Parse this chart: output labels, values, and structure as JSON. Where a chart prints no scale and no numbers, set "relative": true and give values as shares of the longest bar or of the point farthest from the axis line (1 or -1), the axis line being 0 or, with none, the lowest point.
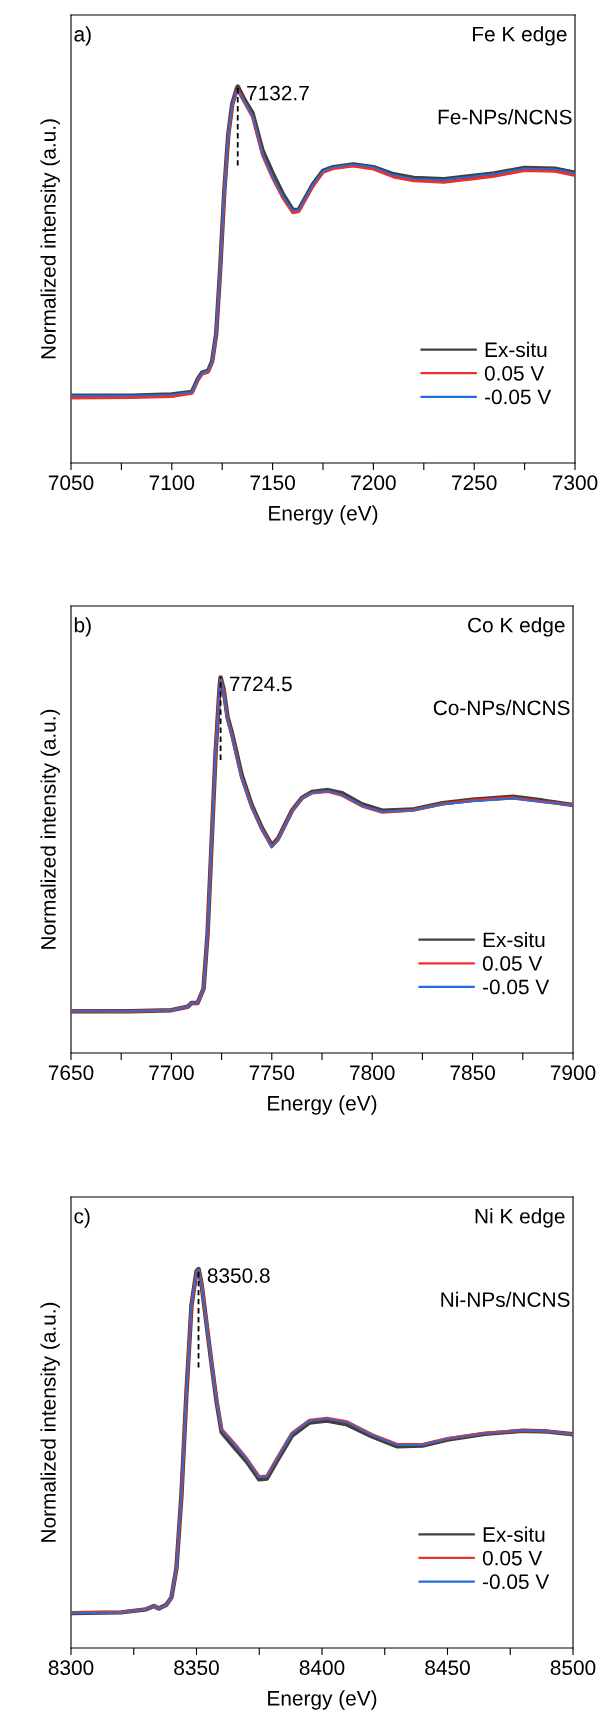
{
  "chart_data": [
    {
      "type": "line",
      "relative": true,
      "xlabel": "Energy (eV)",
      "ylabel": "Normalized intensity (a.u.)",
      "xlim": [
        7050,
        7300
      ],
      "xticks": [
        7050,
        {
          "value": 7075,
          "label": null
        },
        7100,
        {
          "value": 7125,
          "label": null
        },
        7150,
        {
          "value": 7175,
          "label": null
        },
        7200,
        {
          "value": 7225,
          "label": null
        },
        7250,
        {
          "value": 7275,
          "label": null
        },
        7300
      ],
      "tick_labels": "x",
      "legend": "bottom right",
      "line_style": "solid",
      "marker": "none",
      "annotations": [
        "a)",
        "Fe K edge",
        "Fe-NPs/NCNS",
        {
          "text": "7132.7",
          "x": 7132.7,
          "y": 1.0
        }
      ],
      "series": [
        {
          "name": "Ex-situ",
          "color": "#404040",
          "x": [
            7050,
            7080,
            7100,
            7110,
            7113,
            7115,
            7118,
            7120,
            7122,
            7124,
            7126,
            7128,
            7130,
            7132,
            7132.7,
            7136,
            7140,
            7145,
            7150,
            7155,
            7160,
            7163,
            7170,
            7175,
            7180,
            7190,
            7200,
            7210,
            7220,
            7235,
            7250,
            7260,
            7275,
            7290,
            7300
          ],
          "values": [
            0.179,
            0.179,
            0.182,
            0.189,
            0.224,
            0.24,
            0.245,
            0.27,
            0.342,
            0.515,
            0.719,
            0.872,
            0.954,
            0.99,
            1.0,
            0.965,
            0.93,
            0.83,
            0.77,
            0.715,
            0.672,
            0.673,
            0.74,
            0.776,
            0.786,
            0.793,
            0.786,
            0.767,
            0.757,
            0.754,
            0.763,
            0.769,
            0.784,
            0.782,
            0.771
          ]
        },
        {
          "name": "0.05 V",
          "color": "#e8322e",
          "x": [
            7050,
            7080,
            7100,
            7110,
            7113,
            7115,
            7118,
            7120,
            7122,
            7124,
            7126,
            7128,
            7130,
            7132,
            7132.7,
            7136,
            7140,
            7145,
            7150,
            7155,
            7160,
            7163,
            7170,
            7175,
            7180,
            7190,
            7200,
            7210,
            7220,
            7235,
            7250,
            7260,
            7275,
            7290,
            7300
          ],
          "values": [
            0.173,
            0.174,
            0.177,
            0.185,
            0.22,
            0.236,
            0.241,
            0.266,
            0.338,
            0.512,
            0.716,
            0.868,
            0.95,
            0.985,
            0.99,
            0.958,
            0.92,
            0.818,
            0.757,
            0.705,
            0.665,
            0.668,
            0.735,
            0.772,
            0.782,
            0.789,
            0.781,
            0.76,
            0.75,
            0.746,
            0.755,
            0.762,
            0.777,
            0.775,
            0.764
          ]
        },
        {
          "name": "-0.05 V",
          "color": "#1f6fe0",
          "x": [
            7050,
            7080,
            7100,
            7110,
            7113,
            7115,
            7118,
            7120,
            7122,
            7124,
            7126,
            7128,
            7130,
            7132,
            7132.7,
            7136,
            7140,
            7145,
            7150,
            7155,
            7160,
            7163,
            7170,
            7175,
            7180,
            7190,
            7200,
            7210,
            7220,
            7235,
            7250,
            7260,
            7275,
            7290,
            7300
          ],
          "values": [
            0.179,
            0.179,
            0.182,
            0.189,
            0.224,
            0.24,
            0.245,
            0.27,
            0.342,
            0.515,
            0.719,
            0.872,
            0.954,
            0.982,
            0.987,
            0.959,
            0.923,
            0.82,
            0.76,
            0.709,
            0.67,
            0.673,
            0.74,
            0.776,
            0.786,
            0.793,
            0.786,
            0.765,
            0.755,
            0.752,
            0.762,
            0.768,
            0.783,
            0.781,
            0.77
          ]
        },
        {
          "type": "line",
          "color": "#000000",
          "line_style": "dashed",
          "x": [
            7132.7,
            7132.7
          ],
          "values": [
            0.79,
            1.0
          ]
        }
      ]
    },
    {
      "type": "line",
      "relative": true,
      "xlabel": "Energy (eV)",
      "ylabel": "Normalized intensity (a.u.)",
      "xlim": [
        7650,
        7900
      ],
      "xticks": [
        7650,
        {
          "value": 7675,
          "label": null
        },
        7700,
        {
          "value": 7725,
          "label": null
        },
        7750,
        {
          "value": 7775,
          "label": null
        },
        7800,
        {
          "value": 7825,
          "label": null
        },
        7850,
        {
          "value": 7875,
          "label": null
        },
        7900
      ],
      "tick_labels": "x",
      "legend": "bottom right",
      "line_style": "solid",
      "marker": "none",
      "annotations": [
        "b)",
        "Co K edge",
        "Co-NPs/NCNS",
        {
          "text": "7724.5",
          "x": 7724.5,
          "y": 1.0
        }
      ],
      "series": [
        {
          "name": "Ex-situ",
          "color": "#404040",
          "x": [
            7650,
            7680,
            7700,
            7708,
            7710,
            7713,
            7716,
            7718,
            7720,
            7722,
            7724,
            7724.5,
            7726,
            7728,
            7730,
            7735,
            7740,
            7745,
            7750,
            7753,
            7760,
            7765,
            7770,
            7778,
            7785,
            7795,
            7805,
            7820,
            7835,
            7850,
            7870,
            7885,
            7900
          ],
          "values": [
            0.111,
            0.111,
            0.114,
            0.123,
            0.133,
            0.133,
            0.171,
            0.316,
            0.557,
            0.798,
            0.975,
            1.0,
            0.968,
            0.893,
            0.855,
            0.74,
            0.66,
            0.6,
            0.553,
            0.57,
            0.645,
            0.679,
            0.695,
            0.7,
            0.692,
            0.662,
            0.645,
            0.648,
            0.665,
            0.674,
            0.682,
            0.672,
            0.66
          ]
        },
        {
          "name": "0.05 V",
          "color": "#e8322e",
          "x": [
            7650,
            7680,
            7700,
            7708,
            7710,
            7713,
            7716,
            7718,
            7720,
            7722,
            7724,
            7724.5,
            7726,
            7728,
            7730,
            7735,
            7740,
            7745,
            7750,
            7753,
            7760,
            7765,
            7770,
            7778,
            7785,
            7795,
            7805,
            7820,
            7835,
            7850,
            7870,
            7885,
            7900
          ],
          "values": [
            0.112,
            0.111,
            0.114,
            0.123,
            0.133,
            0.133,
            0.171,
            0.316,
            0.557,
            0.798,
            0.972,
            0.997,
            0.963,
            0.886,
            0.848,
            0.732,
            0.654,
            0.596,
            0.549,
            0.567,
            0.643,
            0.678,
            0.692,
            0.696,
            0.686,
            0.657,
            0.641,
            0.646,
            0.663,
            0.672,
            0.679,
            0.669,
            0.66
          ]
        },
        {
          "name": "-0.05 V",
          "color": "#1f6fe0",
          "x": [
            7650,
            7680,
            7700,
            7708,
            7710,
            7713,
            7716,
            7718,
            7720,
            7722,
            7724,
            7724.5,
            7726,
            7728,
            7730,
            7735,
            7740,
            7745,
            7750,
            7753,
            7760,
            7765,
            7770,
            7778,
            7785,
            7795,
            7805,
            7820,
            7835,
            7850,
            7870,
            7885,
            7900
          ],
          "values": [
            0.111,
            0.111,
            0.114,
            0.123,
            0.133,
            0.133,
            0.171,
            0.316,
            0.557,
            0.798,
            0.971,
            0.995,
            0.961,
            0.884,
            0.846,
            0.73,
            0.653,
            0.595,
            0.547,
            0.566,
            0.643,
            0.677,
            0.692,
            0.697,
            0.687,
            0.658,
            0.642,
            0.646,
            0.662,
            0.67,
            0.677,
            0.668,
            0.66
          ]
        },
        {
          "type": "line",
          "color": "#000000",
          "line_style": "dashed",
          "x": [
            7724.5,
            7724.5
          ],
          "values": [
            0.78,
            1.0
          ]
        }
      ]
    },
    {
      "type": "line",
      "relative": true,
      "xlabel": "Energy (eV)",
      "ylabel": "Normalized intensity (a.u.)",
      "xlim": [
        8300,
        8500
      ],
      "xticks": [
        8300,
        {
          "value": 8325,
          "label": null
        },
        8350,
        {
          "value": 8375,
          "label": null
        },
        8400,
        {
          "value": 8425,
          "label": null
        },
        8450,
        {
          "value": 8475,
          "label": null
        },
        8500
      ],
      "tick_labels": "x",
      "legend": "bottom right",
      "line_style": "solid",
      "marker": "none",
      "annotations": [
        "c)",
        "Ni K edge",
        "Ni-NPs/NCNS",
        {
          "text": "8350.8",
          "x": 8350.8,
          "y": 1.0
        }
      ],
      "series": [
        {
          "name": "Ex-situ",
          "color": "#404040",
          "x": [
            8300,
            8320,
            8330,
            8333,
            8335,
            8338,
            8340,
            8342,
            8344,
            8346,
            8348,
            8350,
            8350.8,
            8352,
            8354,
            8356,
            8358,
            8360,
            8365,
            8370,
            8375,
            8378,
            8382,
            8388,
            8395,
            8402,
            8410,
            8420,
            8430,
            8440,
            8450,
            8465,
            8480,
            8490,
            8500
          ],
          "values": [
            0.092,
            0.094,
            0.102,
            0.111,
            0.104,
            0.114,
            0.133,
            0.21,
            0.403,
            0.673,
            0.904,
            0.994,
            1.0,
            0.961,
            0.855,
            0.75,
            0.65,
            0.57,
            0.53,
            0.492,
            0.445,
            0.447,
            0.493,
            0.56,
            0.595,
            0.6,
            0.59,
            0.558,
            0.532,
            0.534,
            0.55,
            0.565,
            0.573,
            0.571,
            0.564
          ]
        },
        {
          "name": "0.05 V",
          "color": "#e8322e",
          "x": [
            8300,
            8320,
            8330,
            8333,
            8335,
            8338,
            8340,
            8342,
            8344,
            8346,
            8348,
            8350,
            8350.8,
            8352,
            8354,
            8356,
            8358,
            8360,
            8365,
            8370,
            8375,
            8378,
            8382,
            8388,
            8395,
            8402,
            8410,
            8420,
            8430,
            8440,
            8450,
            8465,
            8480,
            8490,
            8500
          ],
          "values": [
            0.093,
            0.094,
            0.102,
            0.111,
            0.104,
            0.114,
            0.133,
            0.21,
            0.403,
            0.673,
            0.904,
            0.992,
            0.998,
            0.962,
            0.857,
            0.752,
            0.654,
            0.577,
            0.54,
            0.5,
            0.452,
            0.454,
            0.5,
            0.567,
            0.601,
            0.606,
            0.597,
            0.563,
            0.537,
            0.537,
            0.553,
            0.567,
            0.574,
            0.572,
            0.564
          ]
        },
        {
          "name": "-0.05 V",
          "color": "#1f6fe0",
          "x": [
            8300,
            8320,
            8330,
            8333,
            8335,
            8338,
            8340,
            8342,
            8344,
            8346,
            8348,
            8350,
            8350.8,
            8352,
            8354,
            8356,
            8358,
            8360,
            8365,
            8370,
            8375,
            8378,
            8382,
            8388,
            8395,
            8402,
            8410,
            8420,
            8430,
            8440,
            8450,
            8465,
            8480,
            8490,
            8500
          ],
          "values": [
            0.092,
            0.094,
            0.102,
            0.111,
            0.104,
            0.114,
            0.133,
            0.21,
            0.403,
            0.673,
            0.904,
            0.994,
            0.998,
            0.961,
            0.855,
            0.75,
            0.653,
            0.576,
            0.538,
            0.499,
            0.451,
            0.453,
            0.499,
            0.566,
            0.6,
            0.605,
            0.595,
            0.562,
            0.536,
            0.536,
            0.552,
            0.566,
            0.574,
            0.571,
            0.564
          ]
        },
        {
          "type": "line",
          "color": "#000000",
          "line_style": "dashed",
          "x": [
            8350.8,
            8350.8
          ],
          "values": [
            0.74,
            1.0
          ]
        }
      ]
    }
  ]
}
